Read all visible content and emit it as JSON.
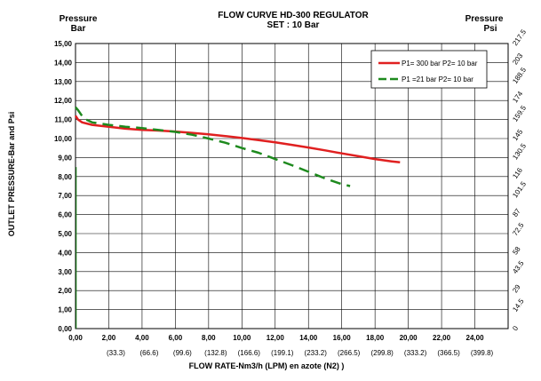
{
  "chart_data": {
    "type": "line",
    "title": "FLOW CURVE HD-300 REGULATOR",
    "subtitle": "SET : 10 Bar",
    "left_axis_title": [
      "Pressure",
      "Bar"
    ],
    "right_axis_title": [
      "Pressure",
      "Psi"
    ],
    "ylabel": "OUTLET PRESSURE-Bar and Psi",
    "xlabel": "FLOW RATE-Nm3/h (LPM)  en azote (N2) )",
    "xlim": [
      0,
      26
    ],
    "ylim": [
      0,
      15
    ],
    "x_ticks": [
      "0,00",
      "2,00",
      "4,00",
      "6,00",
      "8,00",
      "10,00",
      "12,00",
      "14,00",
      "16,00",
      "18,00",
      "20,00",
      "22,00",
      "24,00"
    ],
    "x_ticks_lpm": [
      "(33.3)",
      "(66.6)",
      "(99.6)",
      "(132.8)",
      "(166.6)",
      "(199.1)",
      "(233.2)",
      "(266.5)",
      "(299.8)",
      "(333.2)",
      "(366.5)",
      "(399.8)"
    ],
    "y_ticks": [
      "0,00",
      "1,00",
      "2,00",
      "3,00",
      "4,00",
      "5,00",
      "6,00",
      "7,00",
      "8,00",
      "9,00",
      "10,00",
      "11,00",
      "12,00",
      "13,00",
      "14,00",
      "15,00"
    ],
    "y_ticks_psi": [
      "0",
      "14.5",
      "29",
      "43.5",
      "58",
      "72.5",
      "87",
      "101.5",
      "116",
      "130.5",
      "145",
      "159.5",
      "174",
      "188.5",
      "203",
      "217.5"
    ],
    "grid": true,
    "legend_position": "top-right",
    "series": [
      {
        "name": "P1= 300 bar  P2= 10 bar",
        "color": "#e02020",
        "dash": "solid",
        "x": [
          0.0,
          0.15,
          0.4,
          1,
          2,
          3,
          4,
          5,
          6,
          7,
          8,
          9,
          10,
          11,
          12,
          13,
          14,
          15,
          16,
          17,
          18,
          19,
          19.5
        ],
        "y": [
          11.2,
          11.0,
          10.85,
          10.72,
          10.62,
          10.52,
          10.46,
          10.42,
          10.37,
          10.3,
          10.22,
          10.13,
          10.03,
          9.92,
          9.8,
          9.67,
          9.53,
          9.38,
          9.22,
          9.07,
          8.92,
          8.8,
          8.75
        ]
      },
      {
        "name": "P1 =21 bar  P2= 10 bar",
        "color": "#1e8a1e",
        "dash": "dashed",
        "x": [
          0.0,
          0.15,
          0.5,
          1,
          2,
          3,
          4,
          5,
          6,
          7,
          8,
          9,
          10,
          11,
          12,
          13,
          14,
          15,
          16,
          16.5
        ],
        "y": [
          11.65,
          11.5,
          11.05,
          10.85,
          10.72,
          10.62,
          10.55,
          10.45,
          10.35,
          10.2,
          10.0,
          9.78,
          9.5,
          9.25,
          8.92,
          8.6,
          8.25,
          7.9,
          7.6,
          7.5
        ]
      }
    ]
  }
}
